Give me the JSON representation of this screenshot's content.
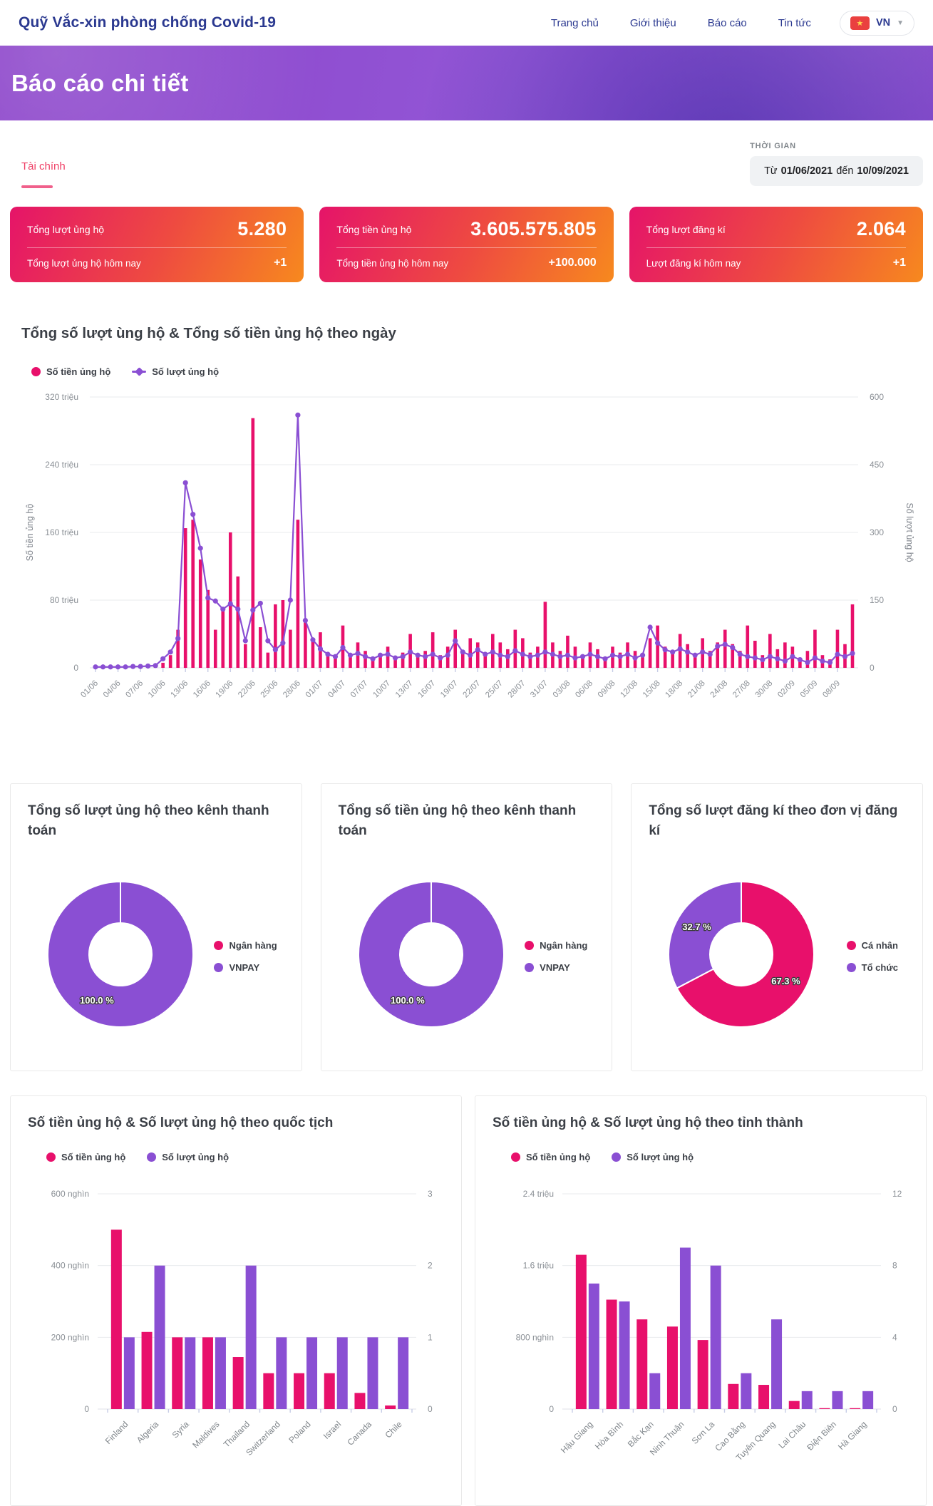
{
  "colors": {
    "pink": "#e8106b",
    "purple": "#8a4fd3",
    "navy": "#2b3990",
    "grid": "#e9ebee",
    "axis_text": "#8b9096",
    "tick": "#c7cde6"
  },
  "header": {
    "logo": "Quỹ Vắc-xin phòng chống Covid-19",
    "nav": [
      {
        "label": "Trang chủ"
      },
      {
        "label": "Giới thiệu"
      },
      {
        "label": "Báo cáo"
      },
      {
        "label": "Tin tức"
      }
    ],
    "lang": {
      "label": "VN",
      "flag_star": "★",
      "chevron": "▼"
    }
  },
  "hero": {
    "title": "Báo cáo chi tiết"
  },
  "filters": {
    "tab": "Tài chính",
    "time_label": "THỜI GIAN",
    "from_word": "Từ",
    "date_from": "01/06/2021",
    "to_word": "đến",
    "date_to": "10/09/2021"
  },
  "stats": [
    {
      "label": "Tổng lượt ủng hộ",
      "value": "5.280",
      "sub_label": "Tổng lượt ủng hộ hôm nay",
      "sub_value": "+1"
    },
    {
      "label": "Tổng tiền ủng hộ",
      "value": "3.605.575.805",
      "sub_label": "Tổng tiền ủng hộ hôm nay",
      "sub_value": "+100.000"
    },
    {
      "label": "Tổng lượt đăng kí",
      "value": "2.064",
      "sub_label": "Lượt đăng kí hôm nay",
      "sub_value": "+1"
    }
  ],
  "chart_data": [
    {
      "id": "daily_combo",
      "type": "bar+line",
      "title": "Tổng số lượt ùng hộ & Tổng số tiền ủng hộ theo ngày",
      "legend": [
        "Số tiền ủng hộ",
        "Số lượt ủng hộ"
      ],
      "y_left": {
        "title": "Số tiền ủng hộ",
        "ticks": [
          "0",
          "80 triệu",
          "160 triệu",
          "240 triệu",
          "320 triệu"
        ],
        "max": 320
      },
      "y_right": {
        "title": "Số lượt ủng hộ",
        "ticks": [
          "0",
          "150",
          "300",
          "450",
          "600"
        ],
        "max": 600
      },
      "x_tick_every": 3,
      "x_tick_labels": [
        "01/06",
        "04/06",
        "07/06",
        "10/06",
        "13/06",
        "16/06",
        "19/06",
        "22/06",
        "25/06",
        "28/06",
        "01/07",
        "04/07",
        "07/07",
        "10/07",
        "13/07",
        "16/07",
        "19/07",
        "22/07",
        "25/07",
        "28/07",
        "31/07",
        "03/08",
        "06/08",
        "09/08",
        "12/08",
        "15/08",
        "18/08",
        "21/08",
        "24/08",
        "27/08",
        "30/08",
        "02/09",
        "05/09",
        "08/09"
      ],
      "bar_series": {
        "name": "Số tiền ủng hộ (triệu)",
        "values": [
          1,
          1,
          1,
          1,
          1,
          1,
          1,
          2,
          3,
          6,
          15,
          45,
          165,
          175,
          128,
          92,
          45,
          70,
          160,
          108,
          28,
          295,
          48,
          18,
          75,
          80,
          45,
          175,
          58,
          35,
          42,
          18,
          12,
          50,
          15,
          30,
          20,
          12,
          15,
          25,
          10,
          18,
          40,
          15,
          20,
          42,
          15,
          25,
          45,
          18,
          35,
          30,
          15,
          40,
          30,
          22,
          45,
          35,
          18,
          25,
          78,
          30,
          20,
          38,
          25,
          15,
          30,
          22,
          12,
          25,
          18,
          30,
          20,
          15,
          35,
          50,
          25,
          18,
          40,
          28,
          15,
          35,
          20,
          30,
          45,
          28,
          20,
          50,
          32,
          15,
          40,
          22,
          30,
          25,
          12,
          20,
          45,
          15,
          10,
          45,
          28,
          75
        ]
      },
      "line_series": {
        "name": "Số lượt ủng hộ",
        "values": [
          2,
          2,
          2,
          2,
          2,
          3,
          3,
          4,
          5,
          20,
          35,
          65,
          410,
          340,
          265,
          155,
          148,
          130,
          142,
          130,
          60,
          128,
          143,
          60,
          40,
          55,
          150,
          560,
          105,
          62,
          42,
          30,
          25,
          45,
          28,
          32,
          25,
          20,
          28,
          30,
          22,
          25,
          35,
          28,
          25,
          30,
          22,
          28,
          60,
          35,
          28,
          40,
          30,
          35,
          28,
          25,
          38,
          30,
          25,
          28,
          35,
          30,
          25,
          28,
          22,
          25,
          30,
          25,
          20,
          28,
          25,
          30,
          22,
          28,
          90,
          55,
          40,
          35,
          42,
          35,
          28,
          35,
          30,
          48,
          52,
          45,
          30,
          25,
          22,
          18,
          25,
          20,
          15,
          25,
          18,
          12,
          22,
          15,
          12,
          30,
          25,
          32
        ]
      }
    },
    {
      "id": "donut_support_count_by_channel",
      "type": "pie",
      "title": "Tổng số lượt ủng hộ theo kênh thanh toán",
      "labels": [
        "Ngân hàng",
        "VNPAY"
      ],
      "values": [
        0,
        100
      ],
      "display_labels": [
        "",
        "100.0 %"
      ]
    },
    {
      "id": "donut_support_amount_by_channel",
      "type": "pie",
      "title": "Tổng số tiền ủng hộ theo kênh thanh toán",
      "labels": [
        "Ngân hàng",
        "VNPAY"
      ],
      "values": [
        0,
        100
      ],
      "display_labels": [
        "",
        "100.0 %"
      ]
    },
    {
      "id": "donut_registration_by_unit",
      "type": "pie",
      "title": "Tổng số lượt đăng kí theo đơn vị đăng kí",
      "labels": [
        "Cá nhân",
        "Tổ chức"
      ],
      "values": [
        67.3,
        32.7
      ],
      "display_labels": [
        "67.3 %",
        "32.7 %"
      ]
    },
    {
      "id": "by_nationality",
      "type": "bar",
      "title": "Số tiền ủng hộ & Số lượt ủng hộ theo quốc tịch",
      "legend": [
        "Số tiền ủng hộ",
        "Số lượt ủng hộ"
      ],
      "categories": [
        "Finland",
        "Algeria",
        "Syria",
        "Maldives",
        "Thailand",
        "Switzerland",
        "Poland",
        "Israel",
        "Canada",
        "Chile"
      ],
      "series": [
        {
          "name": "Số tiền ủng hộ (nghìn)",
          "values": [
            500,
            215,
            200,
            200,
            145,
            100,
            100,
            100,
            45,
            10
          ]
        },
        {
          "name": "Số lượt ủng hộ",
          "values": [
            1,
            2,
            1,
            1,
            2,
            1,
            1,
            1,
            1,
            1
          ]
        }
      ],
      "y_left": {
        "ticks": [
          "0",
          "200 nghìn",
          "400 nghìn",
          "600 nghìn"
        ],
        "max": 600
      },
      "y_right": {
        "ticks": [
          "0",
          "1",
          "2",
          "3"
        ],
        "max": 3
      }
    },
    {
      "id": "by_province",
      "type": "bar",
      "title": "Số tiền ủng hộ & Số lượt ủng hộ theo tỉnh thành",
      "legend": [
        "Số tiền ủng hộ",
        "Số lượt ủng hộ"
      ],
      "categories": [
        "Hậu Giang",
        "Hòa Bình",
        "Bắc Kạn",
        "Ninh Thuận",
        "Sơn La",
        "Cao Bằng",
        "Tuyên Quang",
        "Lai Châu",
        "Điện Biên",
        "Hà Giang"
      ],
      "series": [
        {
          "name": "Số tiền ủng hộ (nghìn)",
          "values": [
            1720,
            1220,
            1000,
            920,
            770,
            280,
            270,
            90,
            10,
            10
          ]
        },
        {
          "name": "Số lượt ủng hộ",
          "values": [
            7,
            6,
            2,
            9,
            8,
            2,
            5,
            1,
            1,
            1
          ]
        }
      ],
      "y_left": {
        "ticks": [
          "0",
          "800 nghìn",
          "1.6 triệu",
          "2.4 triệu"
        ],
        "max": 2400
      },
      "y_right": {
        "ticks": [
          "0",
          "4",
          "8",
          "12"
        ],
        "max": 12
      }
    }
  ]
}
